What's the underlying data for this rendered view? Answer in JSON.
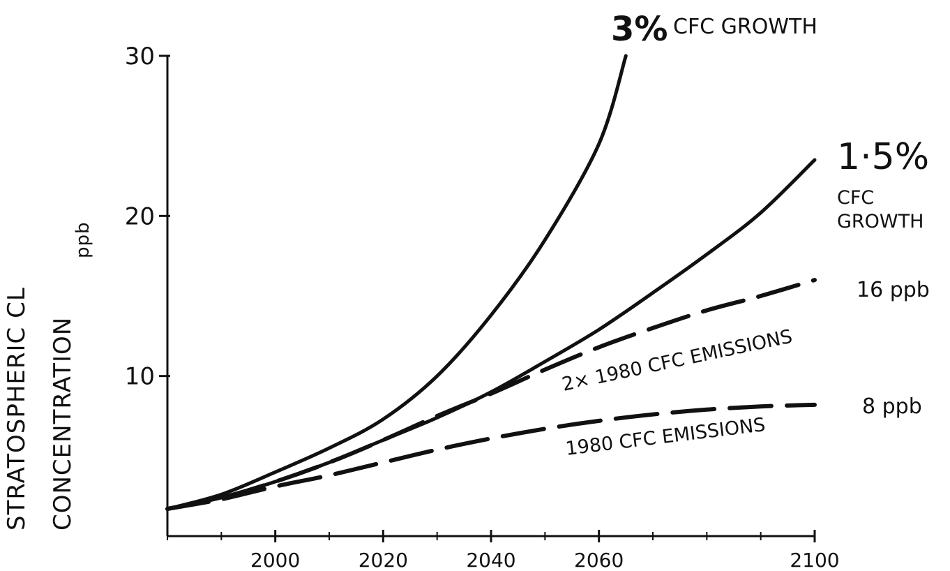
{
  "chart_data": {
    "type": "line",
    "title": "",
    "xlabel": "",
    "ylabel": "STRATOSPHERIC CL CONCENTRATION",
    "yunit": "ppb",
    "xlim": [
      1980,
      2100
    ],
    "ylim": [
      0,
      30
    ],
    "x_ticks": [
      2000,
      2020,
      2040,
      2060,
      2100
    ],
    "x_tick_labels": [
      "2000",
      "2020",
      "2040",
      "2060",
      "2100"
    ],
    "y_ticks": [
      10,
      20,
      30
    ],
    "y_tick_labels": [
      "10",
      "20",
      "30"
    ],
    "grid": false,
    "series": [
      {
        "name": "3% CFC GROWTH",
        "style": "solid",
        "x": [
          1980,
          1990,
          2000,
          2010,
          2020,
          2030,
          2040,
          2050,
          2060,
          2065
        ],
        "y": [
          1.7,
          2.6,
          4.0,
          5.5,
          7.3,
          10.0,
          13.8,
          18.5,
          24.5,
          30.0
        ]
      },
      {
        "name": "1.5% CFC GROWTH",
        "style": "solid",
        "x": [
          1980,
          1990,
          2000,
          2010,
          2020,
          2030,
          2040,
          2050,
          2060,
          2070,
          2080,
          2090,
          2100
        ],
        "y": [
          1.7,
          2.4,
          3.4,
          4.6,
          6.0,
          7.4,
          9.0,
          10.9,
          12.9,
          15.2,
          17.6,
          20.2,
          23.5
        ]
      },
      {
        "name": "2× 1980 CFC EMISSIONS",
        "style": "dashed",
        "x": [
          1980,
          1990,
          2000,
          2010,
          2020,
          2030,
          2040,
          2050,
          2060,
          2070,
          2080,
          2090,
          2100
        ],
        "y": [
          1.7,
          2.4,
          3.4,
          4.6,
          6.0,
          7.5,
          8.9,
          10.4,
          11.8,
          13.0,
          14.1,
          15.0,
          16.0
        ]
      },
      {
        "name": "1980 CFC EMISSIONS",
        "style": "dashed",
        "x": [
          1980,
          1990,
          2000,
          2010,
          2020,
          2030,
          2040,
          2050,
          2060,
          2070,
          2080,
          2090,
          2100
        ],
        "y": [
          1.7,
          2.3,
          3.1,
          3.8,
          4.6,
          5.4,
          6.1,
          6.7,
          7.2,
          7.6,
          7.9,
          8.1,
          8.2
        ]
      }
    ],
    "annotations": {
      "three_pct_big": "3%",
      "three_pct_rest": "CFC GROWTH",
      "one_five_big": "1·5%",
      "one_five_l1": "CFC",
      "one_five_l2": "GROWTH",
      "double_label": "2× 1980 CFC EMISSIONS",
      "single_label": "1980 CFC EMISSIONS",
      "end_16": "16 ppb",
      "end_8": "8 ppb"
    },
    "y_axis_title_line1": "STRATOSPHERIC CL",
    "y_axis_title_line2": "CONCENTRATION",
    "y_axis_unit_label": "ppb"
  }
}
